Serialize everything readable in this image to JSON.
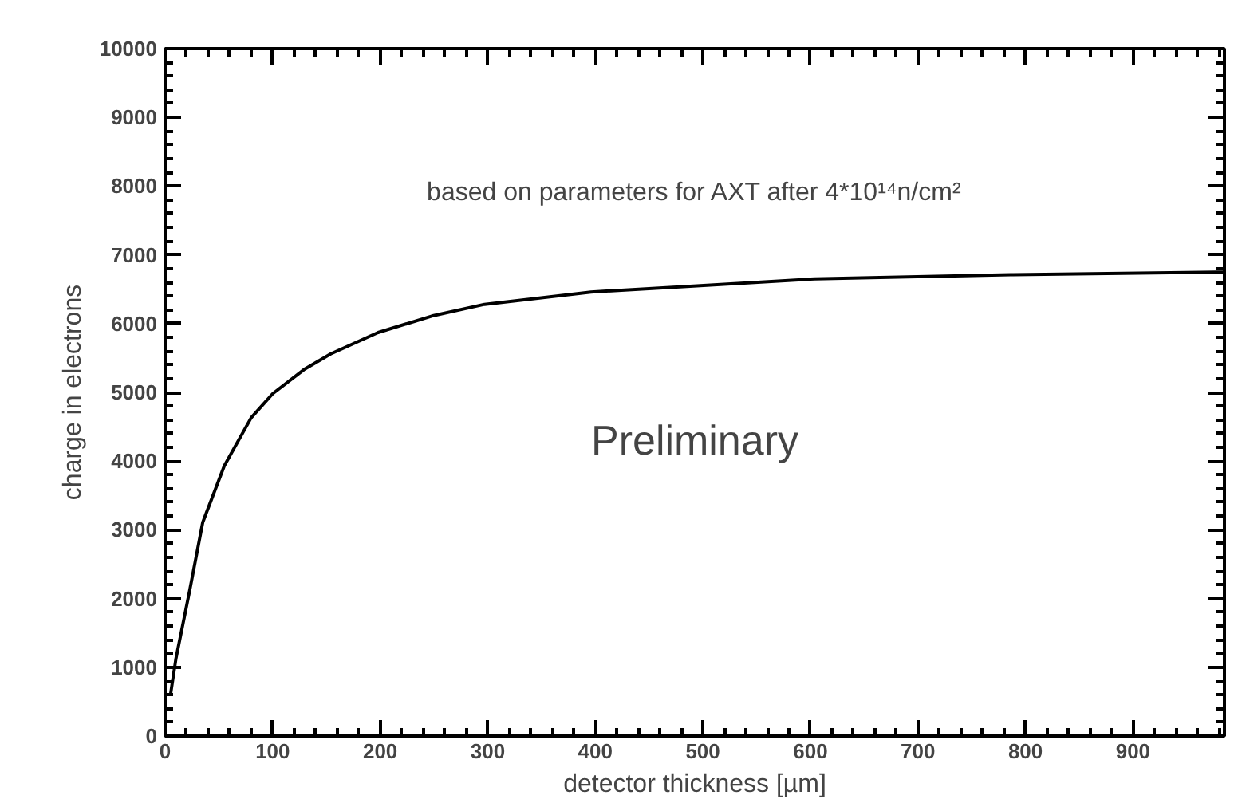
{
  "chart_data": {
    "type": "line",
    "xlabel": "detector thickness [µm]",
    "ylabel": "charge in electrons",
    "annotations": [
      "based on parameters for AXT after 4*10¹⁴n/cm²",
      "Preliminary"
    ],
    "x": [
      5,
      10,
      23,
      35,
      55,
      80,
      100,
      129,
      154,
      198,
      248,
      297,
      396,
      485,
      604,
      786,
      985
    ],
    "series": [
      {
        "color": "#000000",
        "values": [
          600,
          1120,
          2130,
          3110,
          3930,
          4630,
          4980,
          5330,
          5560,
          5870,
          6110,
          6280,
          6460,
          6540,
          6650,
          6710,
          6750
        ]
      }
    ],
    "xlim": [
      0,
      985
    ],
    "ylim": [
      0,
      10000
    ],
    "xticks": [
      0,
      100,
      200,
      300,
      400,
      500,
      600,
      700,
      800,
      900
    ],
    "yticks": [
      0,
      1000,
      2000,
      3000,
      4000,
      5000,
      6000,
      7000,
      8000,
      9000,
      10000
    ],
    "grid": false,
    "marker": "none",
    "line_style": "solid"
  }
}
